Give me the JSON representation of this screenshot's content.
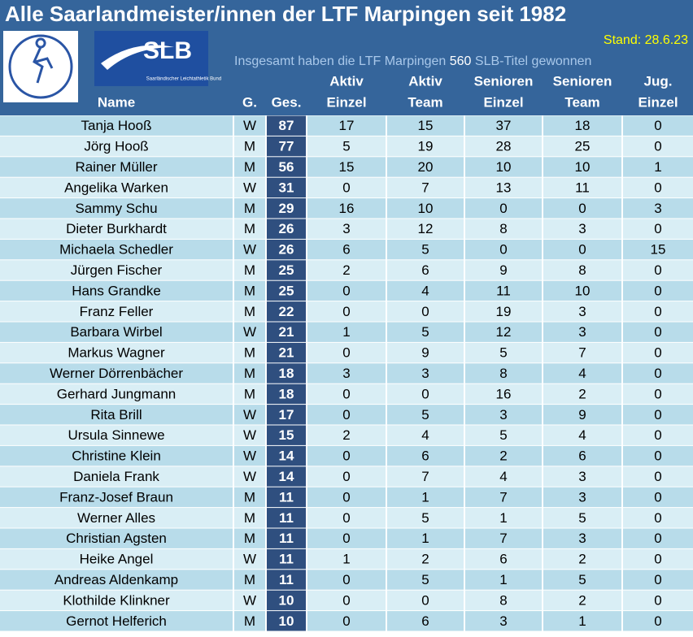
{
  "header": {
    "title": "Alle Saarlandmeister/innen der LTF Marpingen seit 1982",
    "stand": "Stand: 28.6.23",
    "summary_before": "Insgesamt haben die LTF Marpingen",
    "summary_count": "560",
    "summary_after": "SLB-Titel gewonnen",
    "logo_slb": "SLB",
    "logo_slb_sub": "Saarländischer Leichtathletik Bund"
  },
  "table": {
    "columns": [
      [
        "Name"
      ],
      [
        "G."
      ],
      [
        "Ges."
      ],
      [
        "Aktiv",
        "Einzel"
      ],
      [
        "Aktiv",
        "Team"
      ],
      [
        "Senioren",
        "Einzel"
      ],
      [
        "Senioren",
        "Team"
      ],
      [
        "Jug.",
        "Einzel"
      ]
    ],
    "rows": [
      [
        "Tanja Hooß",
        "W",
        "87",
        "17",
        "15",
        "37",
        "18",
        "0"
      ],
      [
        "Jörg Hooß",
        "M",
        "77",
        "5",
        "19",
        "28",
        "25",
        "0"
      ],
      [
        "Rainer Müller",
        "M",
        "56",
        "15",
        "20",
        "10",
        "10",
        "1"
      ],
      [
        "Angelika Warken",
        "W",
        "31",
        "0",
        "7",
        "13",
        "11",
        "0"
      ],
      [
        "Sammy Schu",
        "M",
        "29",
        "16",
        "10",
        "0",
        "0",
        "3"
      ],
      [
        "Dieter Burkhardt",
        "M",
        "26",
        "3",
        "12",
        "8",
        "3",
        "0"
      ],
      [
        "Michaela Schedler",
        "W",
        "26",
        "6",
        "5",
        "0",
        "0",
        "15"
      ],
      [
        "Jürgen Fischer",
        "M",
        "25",
        "2",
        "6",
        "9",
        "8",
        "0"
      ],
      [
        "Hans Grandke",
        "M",
        "25",
        "0",
        "4",
        "11",
        "10",
        "0"
      ],
      [
        "Franz Feller",
        "M",
        "22",
        "0",
        "0",
        "19",
        "3",
        "0"
      ],
      [
        "Barbara Wirbel",
        "W",
        "21",
        "1",
        "5",
        "12",
        "3",
        "0"
      ],
      [
        "Markus Wagner",
        "M",
        "21",
        "0",
        "9",
        "5",
        "7",
        "0"
      ],
      [
        "Werner Dörrenbächer",
        "M",
        "18",
        "3",
        "3",
        "8",
        "4",
        "0"
      ],
      [
        "Gerhard Jungmann",
        "M",
        "18",
        "0",
        "0",
        "16",
        "2",
        "0"
      ],
      [
        "Rita Brill",
        "W",
        "17",
        "0",
        "5",
        "3",
        "9",
        "0"
      ],
      [
        "Ursula Sinnewe",
        "W",
        "15",
        "2",
        "4",
        "5",
        "4",
        "0"
      ],
      [
        "Christine Klein",
        "W",
        "14",
        "0",
        "6",
        "2",
        "6",
        "0"
      ],
      [
        "Daniela Frank",
        "W",
        "14",
        "0",
        "7",
        "4",
        "3",
        "0"
      ],
      [
        "Franz-Josef Braun",
        "M",
        "11",
        "0",
        "1",
        "7",
        "3",
        "0"
      ],
      [
        "Werner Alles",
        "M",
        "11",
        "0",
        "5",
        "1",
        "5",
        "0"
      ],
      [
        "Christian Agsten",
        "M",
        "11",
        "0",
        "1",
        "7",
        "3",
        "0"
      ],
      [
        "Heike Angel",
        "W",
        "11",
        "1",
        "2",
        "6",
        "2",
        "0"
      ],
      [
        "Andreas Aldenkamp",
        "M",
        "11",
        "0",
        "5",
        "1",
        "5",
        "0"
      ],
      [
        "Klothilde Klinkner",
        "W",
        "10",
        "0",
        "0",
        "8",
        "2",
        "0"
      ],
      [
        "Gernot Helferich",
        "M",
        "10",
        "0",
        "6",
        "3",
        "1",
        "0"
      ]
    ]
  }
}
